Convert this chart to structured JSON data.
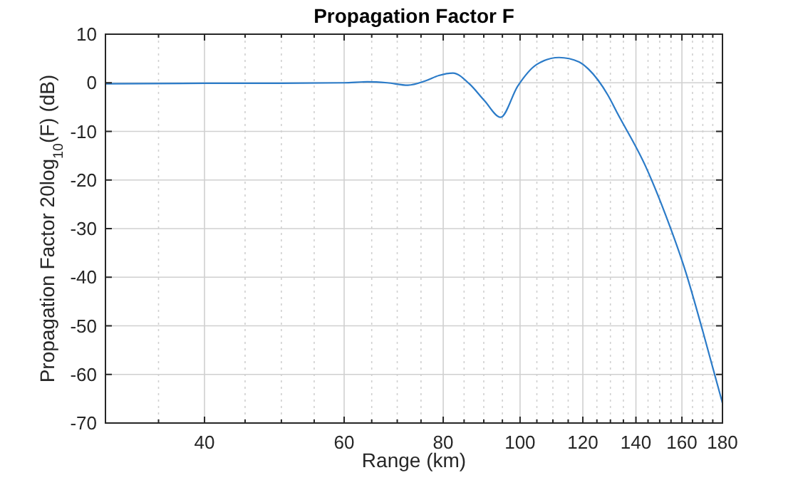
{
  "chart_data": {
    "type": "line",
    "title": "Propagation Factor F",
    "xlabel": "Range (km)",
    "ylabel": "Propagation Factor 20log$_{10}$(F) (dB)",
    "log": "x",
    "grid": true,
    "line_style": "solid",
    "marker": "none",
    "xlim": [
      30,
      180
    ],
    "ylim": [
      -70,
      10
    ],
    "xticks": [
      {
        "value": 35,
        "label": null
      },
      40,
      {
        "value": 45,
        "label": null
      },
      {
        "value": 50,
        "label": null
      },
      {
        "value": 55,
        "label": null
      },
      60,
      {
        "value": 65,
        "label": null
      },
      {
        "value": 70,
        "label": null
      },
      {
        "value": 75,
        "label": null
      },
      80,
      {
        "value": 85,
        "label": null
      },
      {
        "value": 90,
        "label": null
      },
      {
        "value": 95,
        "label": null
      },
      100,
      {
        "value": 105,
        "label": null
      },
      {
        "value": 110,
        "label": null
      },
      {
        "value": 115,
        "label": null
      },
      120,
      {
        "value": 125,
        "label": null
      },
      {
        "value": 130,
        "label": null
      },
      {
        "value": 135,
        "label": null
      },
      140,
      {
        "value": 145,
        "label": null
      },
      {
        "value": 150,
        "label": null
      },
      {
        "value": 155,
        "label": null
      },
      160,
      {
        "value": 165,
        "label": null
      },
      {
        "value": 170,
        "label": null
      },
      {
        "value": 175,
        "label": null
      },
      180
    ],
    "yticks": [
      -70,
      -60,
      -50,
      -40,
      -30,
      -20,
      -10,
      0,
      10
    ],
    "series": [
      {
        "color": "#2b7bc8",
        "x": [
          30,
          40,
          50,
          60,
          64.2,
          68,
          72.2,
          76,
          79,
          82.3,
          86.3,
          90.2,
          94.5,
          99.3,
          105,
          112,
          118.7,
          122,
          129,
          132.6,
          144,
          152.6,
          161.9,
          170,
          180
        ],
        "values": [
          -0.2,
          -0.1,
          -0.1,
          0,
          0.2,
          0,
          -0.5,
          0.4,
          1.5,
          2.0,
          -0.2,
          -3.7,
          -7.1,
          -0.7,
          3.8,
          5.2,
          4.3,
          2.8,
          -2.5,
          -6.2,
          -17.2,
          -27.2,
          -39.1,
          -51.1,
          -65.9
        ]
      }
    ]
  }
}
